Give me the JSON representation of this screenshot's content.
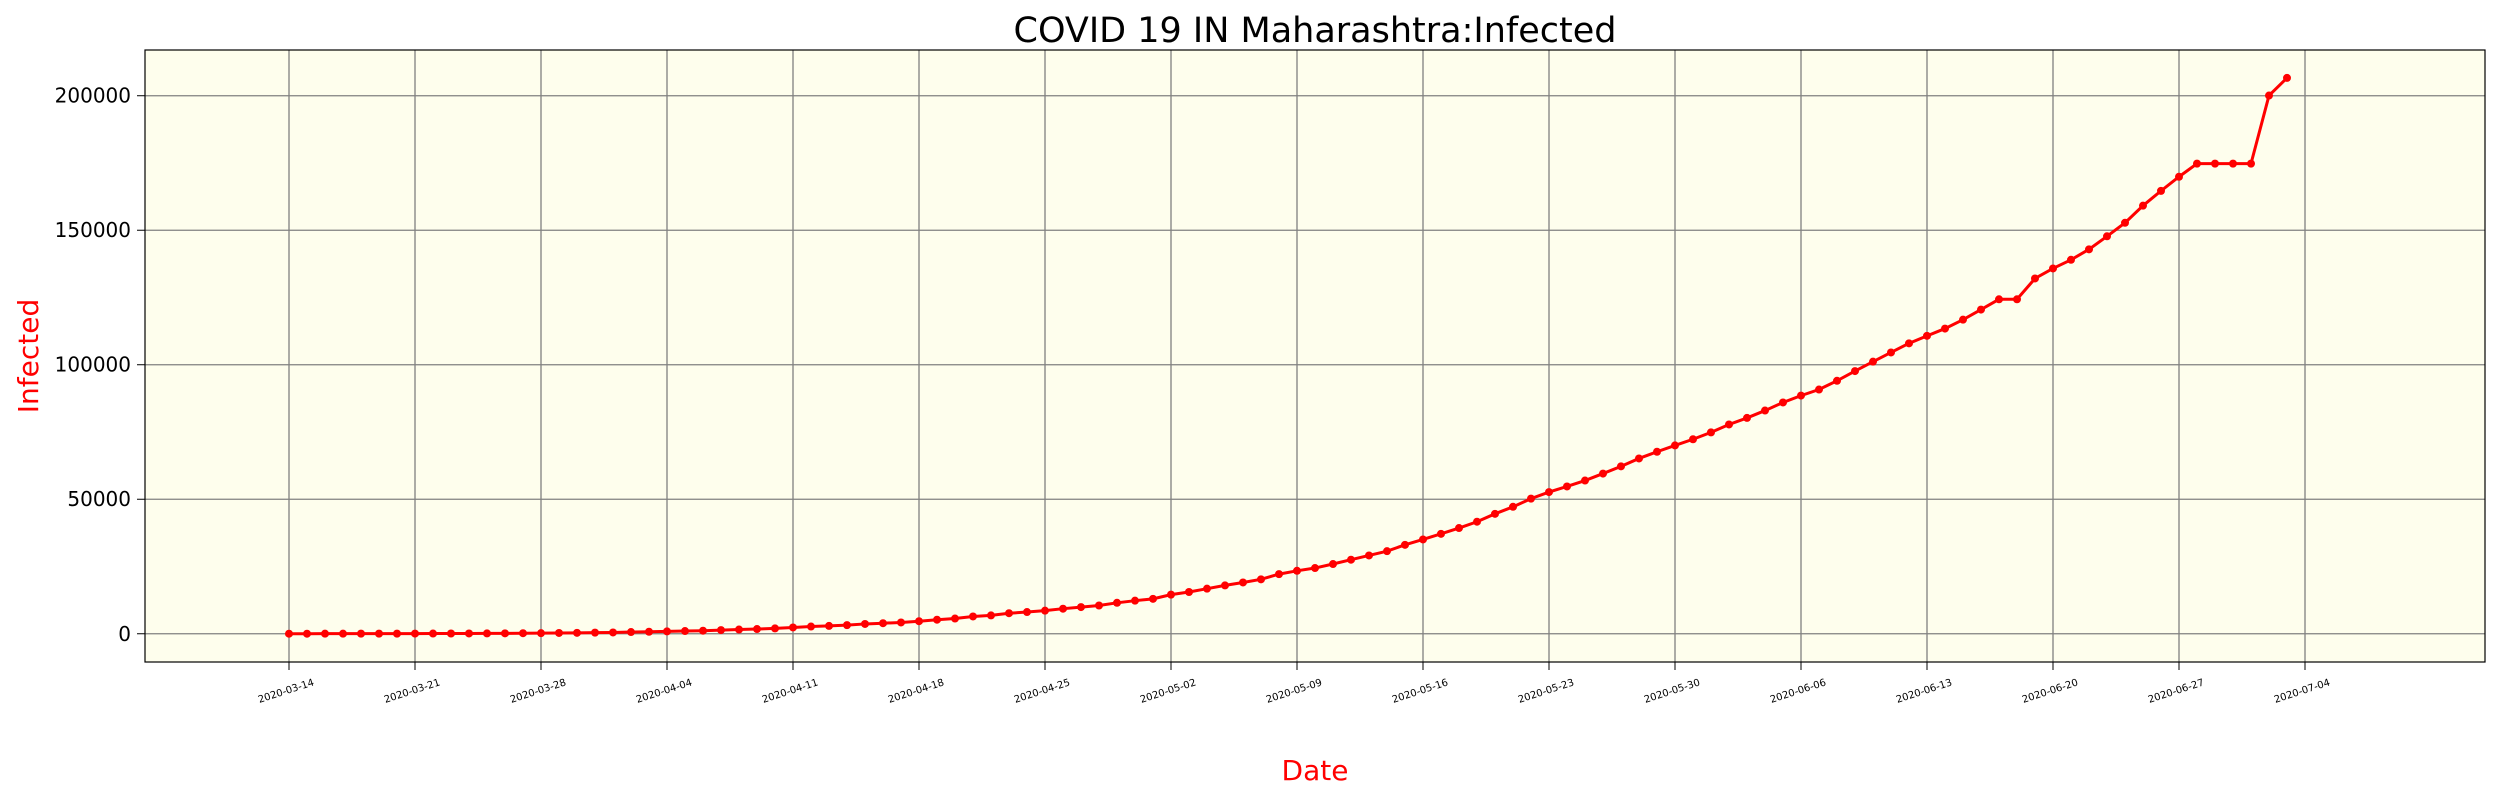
{
  "chart_data": {
    "type": "line",
    "title": "COVID 19 IN Maharashtra:Infected",
    "xlabel": "Date",
    "ylabel": "Infected",
    "start_date": "2020-03-14",
    "x_ticks": [
      "2020-03-14",
      "2020-03-21",
      "2020-03-28",
      "2020-04-04",
      "2020-04-11",
      "2020-04-18",
      "2020-04-25",
      "2020-05-02",
      "2020-05-09",
      "2020-05-16",
      "2020-05-23",
      "2020-05-30",
      "2020-06-06",
      "2020-06-13",
      "2020-06-20",
      "2020-06-27",
      "2020-07-04"
    ],
    "y_ticks": [
      0,
      50000,
      100000,
      150000,
      200000
    ],
    "ylim": [
      -10500,
      217000
    ],
    "xlim": [
      "2020-03-06",
      "2020-07-14"
    ],
    "grid": true,
    "colors": {
      "background": "#fefeed",
      "line": "#ff0000",
      "grid": "#808080",
      "axis_label": "#ff0000"
    },
    "series": [
      {
        "values": [
          14,
          19,
          32,
          39,
          42,
          49,
          52,
          63,
          74,
          89,
          107,
          122,
          153,
          203,
          216,
          302,
          335,
          416,
          490,
          635,
          748,
          868,
          1018,
          1135,
          1364,
          1574,
          1761,
          1982,
          2334,
          2684,
          2916,
          3202,
          3648,
          3916,
          4200,
          4666,
          5218,
          5652,
          6430,
          6817,
          7628,
          8068,
          8590,
          9318,
          9915,
          10498,
          11506,
          12296,
          12974,
          14541,
          15525,
          16758,
          17974,
          19063,
          20228,
          22171,
          23401,
          24427,
          25922,
          27524,
          29100,
          30706,
          33053,
          35058,
          37136,
          39297,
          41642,
          44582,
          47190,
          50231,
          52667,
          54758,
          56948,
          59546,
          62228,
          65168,
          67655,
          70013,
          72300,
          74860,
          77793,
          80229,
          82968,
          85975,
          88528,
          90787,
          94041,
          97648,
          101141,
          104568,
          107958,
          110744,
          113445,
          116752,
          120504,
          124331,
          124331,
          132075,
          135796,
          139010,
          142900,
          147741,
          152765,
          159133,
          164626,
          169883,
          174761,
          174761,
          174761,
          174761,
          200064,
          206619
        ]
      }
    ]
  }
}
